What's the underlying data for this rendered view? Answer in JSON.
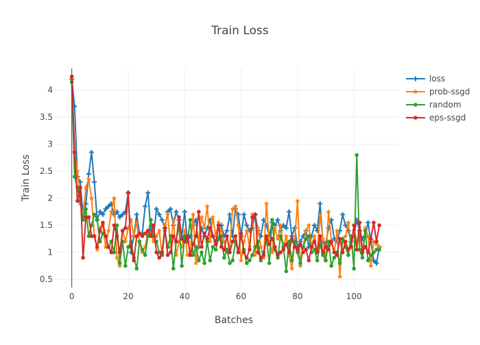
{
  "chart_data": {
    "type": "line",
    "title": "Train Loss",
    "xlabel": "Batches",
    "ylabel": "Train Loss",
    "xlim": [
      -6,
      116
    ],
    "ylim": [
      0.35,
      4.4
    ],
    "xticks": [
      0,
      20,
      40,
      60,
      80,
      100
    ],
    "yticks": [
      0.5,
      1,
      1.5,
      2,
      2.5,
      3,
      3.5,
      4
    ],
    "ytick_labels": [
      "0.5",
      "1",
      "1.5",
      "2",
      "2.5",
      "3",
      "3.5",
      "4"
    ],
    "grid": true,
    "legend_position": "top-right",
    "series": [
      {
        "name": "loss",
        "color": "#1f77b4",
        "marker": "cross",
        "x": [
          0,
          1,
          2,
          3,
          4,
          5,
          6,
          7,
          8,
          9,
          10,
          11,
          12,
          13,
          14,
          15,
          16,
          17,
          18,
          19,
          20,
          21,
          22,
          23,
          24,
          25,
          26,
          27,
          28,
          29,
          30,
          31,
          32,
          33,
          34,
          35,
          36,
          37,
          38,
          39,
          40,
          41,
          42,
          43,
          44,
          45,
          46,
          47,
          48,
          49,
          50,
          51,
          52,
          53,
          54,
          55,
          56,
          57,
          58,
          59,
          60,
          61,
          62,
          63,
          64,
          65,
          66,
          67,
          68,
          69,
          70,
          71,
          72,
          73,
          74,
          75,
          76,
          77,
          78,
          79,
          80,
          81,
          82,
          83,
          84,
          85,
          86,
          87,
          88,
          89,
          90,
          91,
          92,
          93,
          94,
          95,
          96,
          97,
          98,
          99,
          100,
          101,
          102,
          103,
          104,
          105,
          106,
          107,
          108,
          109
        ],
        "y": [
          4.2,
          3.7,
          2.4,
          2.3,
          1.7,
          1.9,
          2.45,
          2.85,
          2.3,
          1.6,
          1.75,
          1.7,
          1.8,
          1.85,
          1.9,
          1.7,
          1.75,
          1.65,
          1.7,
          1.75,
          2.1,
          1.0,
          1.3,
          1.7,
          1.35,
          1.35,
          1.85,
          2.1,
          1.4,
          1.3,
          1.8,
          1.7,
          1.6,
          1.45,
          1.75,
          1.8,
          1.5,
          1.75,
          1.6,
          1.3,
          1.75,
          1.2,
          1.3,
          1.5,
          1.6,
          1.1,
          1.45,
          1.3,
          1.45,
          1.6,
          1.3,
          1.2,
          1.25,
          1.5,
          1.3,
          1.4,
          1.7,
          1.3,
          1.8,
          1.7,
          1.3,
          1.7,
          1.5,
          1.4,
          1.45,
          1.7,
          1.4,
          1.3,
          1.6,
          1.5,
          1.3,
          1.55,
          1.5,
          1.6,
          1.4,
          1.5,
          1.45,
          1.75,
          1.3,
          1.45,
          1.1,
          1.2,
          1.3,
          1.4,
          1.1,
          1.3,
          1.5,
          1.4,
          1.9,
          1.2,
          1.15,
          1.45,
          1.6,
          1.25,
          1.2,
          1.4,
          1.7,
          1.5,
          1.4,
          1.2,
          1.3,
          1.6,
          1.4,
          1.25,
          1.3,
          1.55,
          1.2,
          0.85,
          0.8,
          1.1
        ]
      },
      {
        "name": "prob-ssgd",
        "color": "#ff7f0e",
        "marker": "star",
        "x": [
          0,
          1,
          2,
          3,
          4,
          5,
          6,
          7,
          8,
          9,
          10,
          11,
          12,
          13,
          14,
          15,
          16,
          17,
          18,
          19,
          20,
          21,
          22,
          23,
          24,
          25,
          26,
          27,
          28,
          29,
          30,
          31,
          32,
          33,
          34,
          35,
          36,
          37,
          38,
          39,
          40,
          41,
          42,
          43,
          44,
          45,
          46,
          47,
          48,
          49,
          50,
          51,
          52,
          53,
          54,
          55,
          56,
          57,
          58,
          59,
          60,
          61,
          62,
          63,
          64,
          65,
          66,
          67,
          68,
          69,
          70,
          71,
          72,
          73,
          74,
          75,
          76,
          77,
          78,
          79,
          80,
          81,
          82,
          83,
          84,
          85,
          86,
          87,
          88,
          89,
          90,
          91,
          92,
          93,
          94,
          95,
          96,
          97,
          98,
          99,
          100,
          101,
          102,
          103,
          104,
          105,
          106,
          107,
          108,
          109
        ],
        "y": [
          4.2,
          2.85,
          2.5,
          1.9,
          1.7,
          2.2,
          2.35,
          2.0,
          1.3,
          1.05,
          1.45,
          1.5,
          1.1,
          1.4,
          1.75,
          2.0,
          0.9,
          0.75,
          1.4,
          1.2,
          1.45,
          1.6,
          1.3,
          1.55,
          1.2,
          1.0,
          1.1,
          1.4,
          1.35,
          1.2,
          1.3,
          1.4,
          0.95,
          1.5,
          1.7,
          1.1,
          1.6,
          0.95,
          1.2,
          1.1,
          1.4,
          0.95,
          1.0,
          1.7,
          0.8,
          1.25,
          1.65,
          1.45,
          1.85,
          1.2,
          1.65,
          1.3,
          1.55,
          1.4,
          1.2,
          1.0,
          1.1,
          1.8,
          1.85,
          1.5,
          0.85,
          1.2,
          1.4,
          1.1,
          1.7,
          0.95,
          1.45,
          1.1,
          0.9,
          1.9,
          1.2,
          1.0,
          1.45,
          1.25,
          1.5,
          1.1,
          1.3,
          0.95,
          0.7,
          1.2,
          1.95,
          0.75,
          1.1,
          1.4,
          1.5,
          1.1,
          1.3,
          1.0,
          1.7,
          1.25,
          0.85,
          1.75,
          1.2,
          1.0,
          1.4,
          0.55,
          1.25,
          1.3,
          1.55,
          1.1,
          1.4,
          1.2,
          1.35,
          1.0,
          1.45,
          1.3,
          0.75,
          1.2,
          1.15,
          1.1
        ]
      },
      {
        "name": "random",
        "color": "#2ca02c",
        "marker": "circle",
        "x": [
          0,
          1,
          2,
          3,
          4,
          5,
          6,
          7,
          8,
          9,
          10,
          11,
          12,
          13,
          14,
          15,
          16,
          17,
          18,
          19,
          20,
          21,
          22,
          23,
          24,
          25,
          26,
          27,
          28,
          29,
          30,
          31,
          32,
          33,
          34,
          35,
          36,
          37,
          38,
          39,
          40,
          41,
          42,
          43,
          44,
          45,
          46,
          47,
          48,
          49,
          50,
          51,
          52,
          53,
          54,
          55,
          56,
          57,
          58,
          59,
          60,
          61,
          62,
          63,
          64,
          65,
          66,
          67,
          68,
          69,
          70,
          71,
          72,
          73,
          74,
          75,
          76,
          77,
          78,
          79,
          80,
          81,
          82,
          83,
          84,
          85,
          86,
          87,
          88,
          89,
          90,
          91,
          92,
          93,
          94,
          95,
          96,
          97,
          98,
          99,
          100,
          101,
          102,
          103,
          104,
          105,
          106,
          107,
          108,
          109
        ],
        "y": [
          4.15,
          2.4,
          2.2,
          1.95,
          1.6,
          1.8,
          1.3,
          1.5,
          1.7,
          1.6,
          1.2,
          1.35,
          1.3,
          1.1,
          1.2,
          1.0,
          1.5,
          0.8,
          1.2,
          0.75,
          1.1,
          1.2,
          0.9,
          0.7,
          1.2,
          1.05,
          0.95,
          1.3,
          1.6,
          1.3,
          1.2,
          1.0,
          0.95,
          1.4,
          1.1,
          1.3,
          0.7,
          1.2,
          1.5,
          0.75,
          1.3,
          1.2,
          1.6,
          0.95,
          1.1,
          0.85,
          1.0,
          0.8,
          1.2,
          0.85,
          1.1,
          1.05,
          1.25,
          1.3,
          0.9,
          1.05,
          0.8,
          0.85,
          1.2,
          1.0,
          1.3,
          1.05,
          0.8,
          0.85,
          0.95,
          1.1,
          1.2,
          0.85,
          1.0,
          1.25,
          0.8,
          1.6,
          1.05,
          0.9,
          1.3,
          1.1,
          0.65,
          1.2,
          0.85,
          1.2,
          1.0,
          0.8,
          1.1,
          1.25,
          1.3,
          1.0,
          1.05,
          0.85,
          1.15,
          0.95,
          0.85,
          1.2,
          0.75,
          0.9,
          1.0,
          0.8,
          1.25,
          1.1,
          0.95,
          1.3,
          0.7,
          2.8,
          1.05,
          0.9,
          1.4,
          0.85,
          0.95,
          1.0,
          1.05,
          1.05
        ]
      },
      {
        "name": "eps-ssgd",
        "color": "#d62728",
        "marker": "circle",
        "x": [
          0,
          1,
          2,
          3,
          4,
          5,
          6,
          7,
          8,
          9,
          10,
          11,
          12,
          13,
          14,
          15,
          16,
          17,
          18,
          19,
          20,
          21,
          22,
          23,
          24,
          25,
          26,
          27,
          28,
          29,
          30,
          31,
          32,
          33,
          34,
          35,
          36,
          37,
          38,
          39,
          40,
          41,
          42,
          43,
          44,
          45,
          46,
          47,
          48,
          49,
          50,
          51,
          52,
          53,
          54,
          55,
          56,
          57,
          58,
          59,
          60,
          61,
          62,
          63,
          64,
          65,
          66,
          67,
          68,
          69,
          70,
          71,
          72,
          73,
          74,
          75,
          76,
          77,
          78,
          79,
          80,
          81,
          82,
          83,
          84,
          85,
          86,
          87,
          88,
          89,
          90,
          91,
          92,
          93,
          94,
          95,
          96,
          97,
          98,
          99,
          100,
          101,
          102,
          103,
          104,
          105,
          106,
          107,
          108,
          109
        ],
        "y": [
          4.25,
          2.85,
          1.95,
          2.2,
          0.9,
          1.65,
          1.65,
          1.3,
          1.3,
          1.1,
          1.4,
          1.55,
          1.3,
          1.1,
          1.0,
          1.5,
          1.3,
          1.0,
          1.4,
          1.45,
          2.1,
          1.1,
          0.85,
          1.3,
          1.35,
          1.3,
          1.35,
          1.4,
          1.3,
          1.5,
          1.0,
          0.9,
          1.0,
          1.45,
          0.95,
          1.0,
          1.3,
          1.2,
          1.65,
          1.25,
          1.2,
          1.3,
          0.95,
          1.15,
          1.3,
          1.75,
          1.1,
          1.35,
          1.25,
          1.45,
          1.3,
          1.15,
          1.5,
          1.1,
          1.05,
          1.3,
          1.0,
          1.2,
          1.3,
          1.0,
          1.35,
          1.0,
          0.9,
          1.05,
          1.65,
          1.7,
          1.0,
          0.9,
          0.95,
          1.3,
          1.15,
          1.25,
          1.1,
          0.95,
          1.0,
          1.05,
          1.15,
          1.0,
          1.25,
          1.1,
          1.05,
          1.15,
          1.0,
          1.05,
          0.85,
          1.1,
          1.2,
          1.0,
          1.3,
          1.0,
          1.1,
          1.05,
          1.2,
          1.0,
          0.95,
          1.25,
          1.0,
          1.2,
          1.05,
          1.1,
          1.5,
          1.05,
          1.55,
          1.0,
          1.1,
          1.0,
          1.25,
          1.55,
          1.2,
          1.5
        ]
      }
    ]
  }
}
